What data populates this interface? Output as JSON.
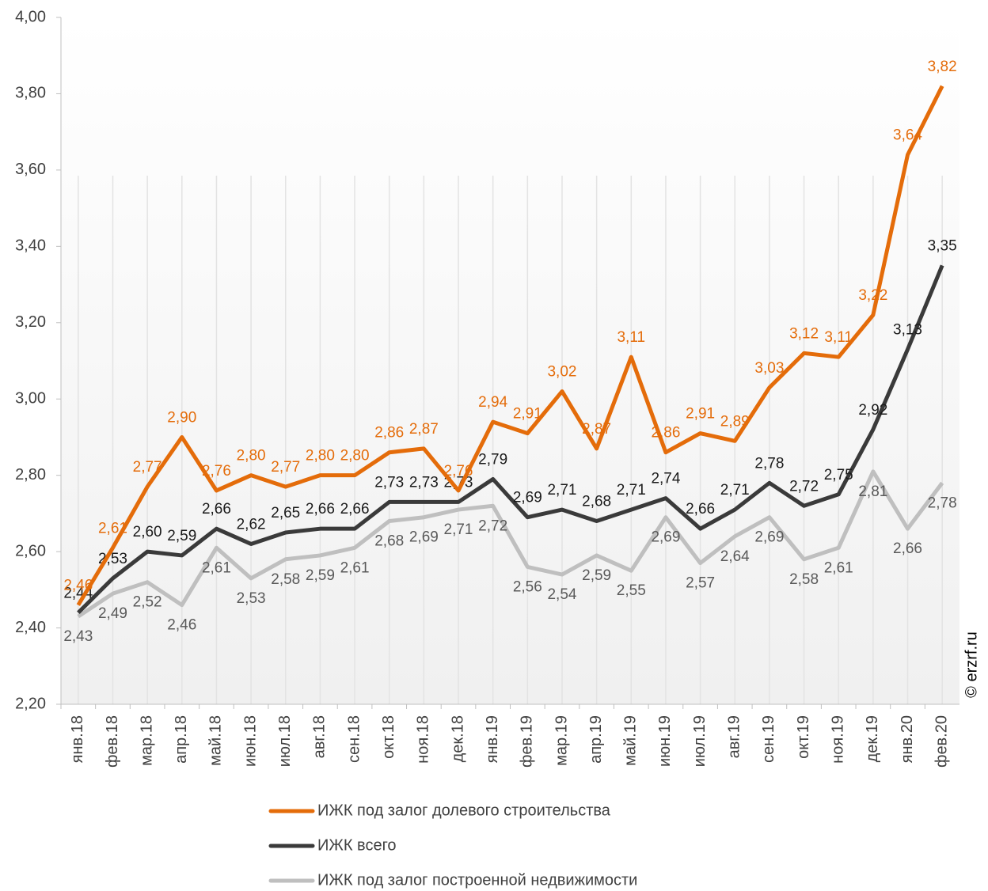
{
  "chart_data": {
    "type": "line",
    "categories": [
      "янв.18",
      "фев.18",
      "мар.18",
      "апр.18",
      "май.18",
      "июн.18",
      "июл.18",
      "авг.18",
      "сен.18",
      "окт.18",
      "ноя.18",
      "дек.18",
      "янв.19",
      "фев.19",
      "мар.19",
      "апр.19",
      "май.19",
      "июн.19",
      "июл.19",
      "авг.19",
      "сен.19",
      "окт.19",
      "ноя.19",
      "дек.19",
      "янв.20",
      "фев.20"
    ],
    "series": [
      {
        "name": "ИЖК под залог долевого строительства",
        "color": "#e46c0a",
        "values": [
          2.46,
          2.61,
          2.77,
          2.9,
          2.76,
          2.8,
          2.77,
          2.8,
          2.8,
          2.86,
          2.87,
          2.76,
          2.94,
          2.91,
          3.02,
          2.87,
          3.11,
          2.86,
          2.91,
          2.89,
          3.03,
          3.12,
          3.11,
          3.22,
          3.64,
          3.82
        ],
        "value_labels": [
          "2,46",
          "2,61",
          "2,77",
          "2,90",
          "2,76",
          "2,80",
          "2,77",
          "2,80",
          "2,80",
          "2,86",
          "2,87",
          "2,76",
          "2,94",
          "2,91",
          "3,02",
          "2,87",
          "3,11",
          "2,86",
          "2,91",
          "2,89",
          "3,03",
          "3,12",
          "3,11",
          "3,22",
          "3,64",
          "3,82"
        ]
      },
      {
        "name": "ИЖК всего",
        "color": "#3a3a3a",
        "values": [
          2.44,
          2.53,
          2.6,
          2.59,
          2.66,
          2.62,
          2.65,
          2.66,
          2.66,
          2.73,
          2.73,
          2.73,
          2.79,
          2.69,
          2.71,
          2.68,
          2.71,
          2.74,
          2.66,
          2.71,
          2.78,
          2.72,
          2.75,
          2.92,
          3.13,
          3.35
        ],
        "value_labels": [
          "2,44",
          "2,53",
          "2,60",
          "2,59",
          "2,66",
          "2,62",
          "2,65",
          "2,66",
          "2,66",
          "2,73",
          "2,73",
          "2,73",
          "2,79",
          "2,69",
          "2,71",
          "2,68",
          "2,71",
          "2,74",
          "2,66",
          "2,71",
          "2,78",
          "2,72",
          "2,75",
          "2,92",
          "3,13",
          "3,35"
        ]
      },
      {
        "name": "ИЖК под залог построенной недвижимости",
        "color": "#bfbfbf",
        "values": [
          2.43,
          2.49,
          2.52,
          2.46,
          2.61,
          2.53,
          2.58,
          2.59,
          2.61,
          2.68,
          2.69,
          2.71,
          2.72,
          2.56,
          2.54,
          2.59,
          2.55,
          2.69,
          2.57,
          2.64,
          2.69,
          2.58,
          2.61,
          2.81,
          2.66,
          2.78
        ],
        "value_labels": [
          "2,43",
          "2,49",
          "2,52",
          "2,46",
          "2,61",
          "2,53",
          "2,58",
          "2,59",
          "2,61",
          "2,68",
          "2,69",
          "2,71",
          "2,72",
          "2,56",
          "2,54",
          "2,59",
          "2,55",
          "2,69",
          "2,57",
          "2,64",
          "2,69",
          "2,58",
          "2,61",
          "2,81",
          "2,66",
          "2,78"
        ]
      }
    ],
    "ylim": [
      2.2,
      4.0
    ],
    "yticks": [
      {
        "value": 2.2,
        "label": "2,20"
      },
      {
        "value": 2.4,
        "label": "2,40"
      },
      {
        "value": 2.6,
        "label": "2,60"
      },
      {
        "value": 2.8,
        "label": "2,80"
      },
      {
        "value": 3.0,
        "label": "3,00"
      },
      {
        "value": 3.2,
        "label": "3,20"
      },
      {
        "value": 3.4,
        "label": "3,40"
      },
      {
        "value": 3.6,
        "label": "3,60"
      },
      {
        "value": 3.8,
        "label": "3,80"
      },
      {
        "value": 4.0,
        "label": "4,00"
      }
    ],
    "watermark": "© erzrf.ru"
  }
}
